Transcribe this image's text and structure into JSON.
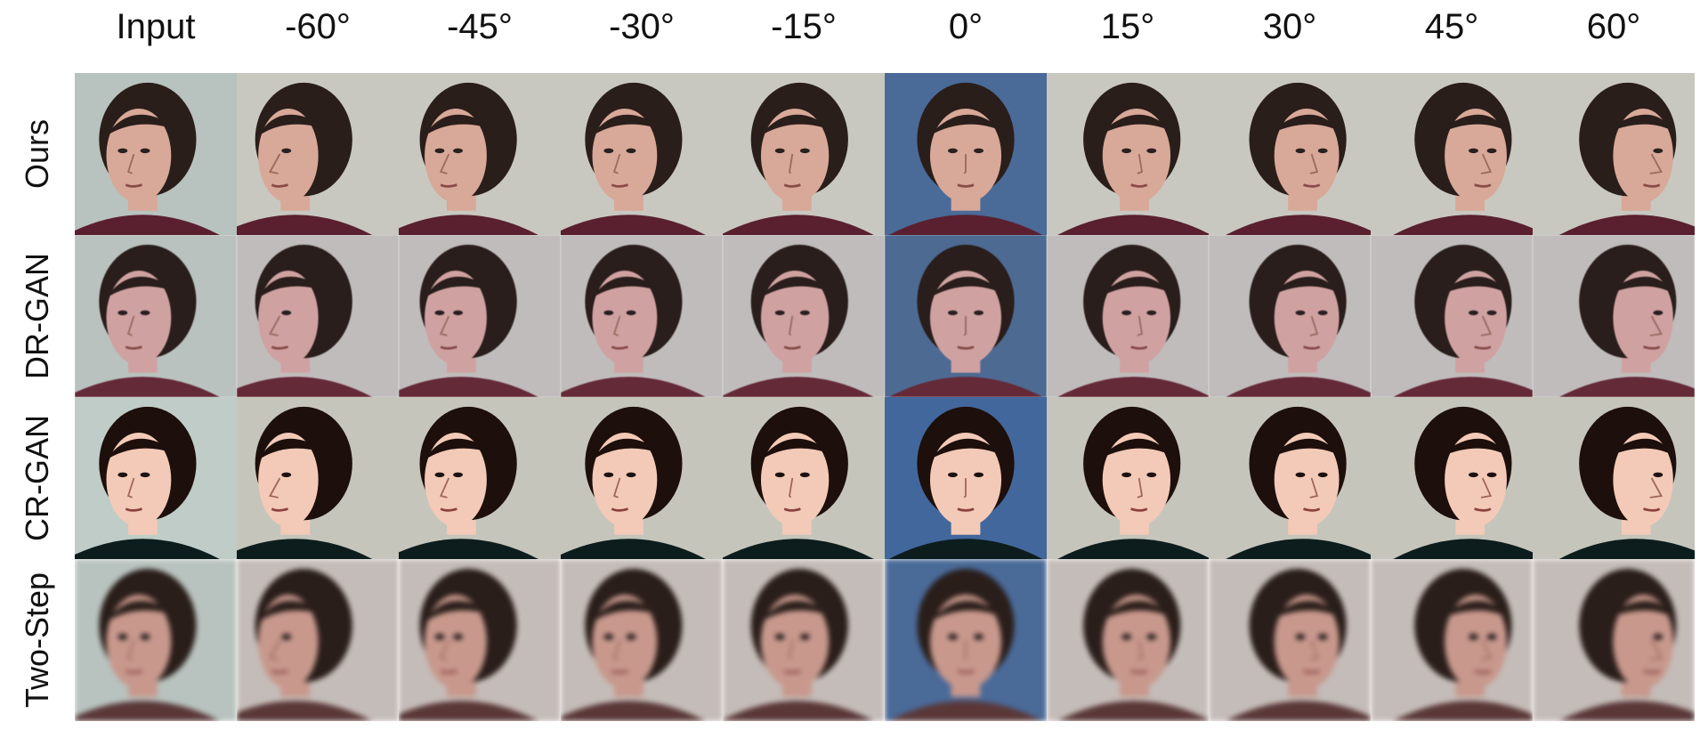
{
  "figure": {
    "column_headers": [
      "Input",
      "-60°",
      "-45°",
      "-30°",
      "-15°",
      "0°",
      "15°",
      "30°",
      "45°",
      "60°"
    ],
    "row_labels": [
      "Ours",
      "DR-GAN",
      "CR-GAN",
      "Two-Step"
    ],
    "yaws": [
      null,
      -60,
      -45,
      -30,
      -15,
      0,
      15,
      30,
      45,
      60
    ],
    "input_yaw": -30,
    "rows": [
      {
        "style": "sharp",
        "skin": "#d8a898",
        "shirt": "#5a2030",
        "background": "#c8c8c0"
      },
      {
        "style": "smooth",
        "skin": "#d4a0a0",
        "shirt": "#6a2838",
        "background": "#c0bcbc"
      },
      {
        "style": "contrast",
        "skin": "#e4c0b0",
        "shirt": "#1c2a2a",
        "background": "#bcbcb4"
      },
      {
        "style": "blurry",
        "skin": "#c8988c",
        "shirt": "#5a3838",
        "background": "#c4bcb8"
      }
    ],
    "colors": {
      "hair": "#2a1e1a",
      "input_background": "#b8c2be",
      "frontal_background": "#4a6a98",
      "text": "#111111"
    }
  }
}
